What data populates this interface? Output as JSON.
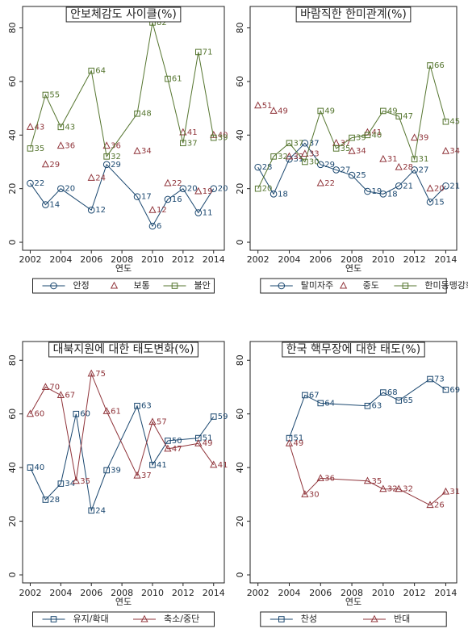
{
  "chart_data": [
    {
      "type": "line",
      "title": "안보체감도 사이클(%)",
      "x_label": "연도",
      "x": [
        2002,
        2003,
        2004,
        2006,
        2007,
        2009,
        2010,
        2011,
        2012,
        2013,
        2014
      ],
      "xlim": [
        2001.5,
        2014.7
      ],
      "xticks": [
        2002,
        2004,
        2006,
        2008,
        2010,
        2012,
        2014
      ],
      "ylim": [
        -3,
        88
      ],
      "yticks": [
        0,
        20,
        40,
        60,
        80
      ],
      "grid": false,
      "legend": "bottom",
      "series": [
        {
          "name": "안정",
          "color": "#1a476f",
          "marker": "circle",
          "line": true,
          "values": [
            22,
            14,
            20,
            12,
            29,
            17,
            6,
            16,
            20,
            11,
            20
          ]
        },
        {
          "name": "보통",
          "color": "#90353b",
          "marker": "triangle",
          "line": false,
          "values": [
            43,
            29,
            36,
            24,
            36,
            34,
            12,
            22,
            41,
            19,
            40
          ]
        },
        {
          "name": "불안",
          "color": "#55752f",
          "marker": "square",
          "line": true,
          "values": [
            35,
            55,
            43,
            64,
            32,
            48,
            82,
            61,
            37,
            71,
            39
          ]
        }
      ]
    },
    {
      "type": "line",
      "title": "바람직한 한미관계(%)",
      "x_label": "연도",
      "x": [
        2002,
        2003,
        2004,
        2005,
        2006,
        2007,
        2008,
        2009,
        2010,
        2011,
        2012,
        2013,
        2014
      ],
      "xlim": [
        2001.5,
        2014.7
      ],
      "xticks": [
        2002,
        2004,
        2006,
        2008,
        2010,
        2012,
        2014
      ],
      "ylim": [
        -3,
        88
      ],
      "yticks": [
        0,
        20,
        40,
        60,
        80
      ],
      "grid": false,
      "legend": "bottom",
      "series": [
        {
          "name": "탈미자주",
          "color": "#1a476f",
          "marker": "circle",
          "line": true,
          "values": [
            28,
            18,
            31,
            37,
            29,
            27,
            25,
            19,
            18,
            21,
            27,
            15,
            21
          ]
        },
        {
          "name": "중도",
          "color": "#90353b",
          "marker": "triangle",
          "line": false,
          "values": [
            51,
            49,
            32,
            33,
            22,
            37,
            34,
            41,
            31,
            28,
            39,
            20,
            34
          ]
        },
        {
          "name": "한미동맹강화",
          "color": "#55752f",
          "marker": "square",
          "line": true,
          "values": [
            20,
            32,
            37,
            30,
            49,
            35,
            39,
            40,
            49,
            47,
            31,
            66,
            45
          ]
        }
      ]
    },
    {
      "type": "line",
      "title": "대북지원에 대한 태도변화(%)",
      "x_label": "연도",
      "x": [
        2002,
        2003,
        2004,
        2005,
        2006,
        2007,
        2009,
        2010,
        2011,
        2013,
        2014
      ],
      "xlim": [
        2001.5,
        2014.7
      ],
      "xticks": [
        2002,
        2004,
        2006,
        2008,
        2010,
        2012,
        2014
      ],
      "ylim": [
        -3,
        87
      ],
      "yticks": [
        0,
        20,
        40,
        60,
        80
      ],
      "grid": false,
      "legend": "bottom",
      "series": [
        {
          "name": "유지/확대",
          "color": "#1a476f",
          "marker": "square",
          "line": true,
          "values": [
            40,
            28,
            34,
            60,
            24,
            39,
            63,
            41,
            50,
            51,
            59
          ]
        },
        {
          "name": "축소/중단",
          "color": "#90353b",
          "marker": "triangle",
          "line": true,
          "values": [
            60,
            70,
            67,
            35,
            75,
            61,
            37,
            57,
            47,
            49,
            41
          ]
        }
      ]
    },
    {
      "type": "line",
      "title": "한국 핵무장에 대한 태도(%)",
      "x_label": "연도",
      "x": [
        2004,
        2005,
        2006,
        2009,
        2010,
        2011,
        2013,
        2014
      ],
      "xlim": [
        2001.5,
        2014.7
      ],
      "xticks": [
        2002,
        2004,
        2006,
        2008,
        2010,
        2012,
        2014
      ],
      "ylim": [
        -3,
        87
      ],
      "yticks": [
        0,
        20,
        40,
        60,
        80
      ],
      "grid": false,
      "legend": "bottom",
      "series": [
        {
          "name": "찬성",
          "color": "#1a476f",
          "marker": "square",
          "line": true,
          "values": [
            51,
            67,
            64,
            63,
            68,
            65,
            73,
            69
          ]
        },
        {
          "name": "반대",
          "color": "#90353b",
          "marker": "triangle",
          "line": true,
          "values": [
            49,
            30,
            36,
            35,
            32,
            32,
            26,
            31
          ]
        }
      ]
    }
  ]
}
